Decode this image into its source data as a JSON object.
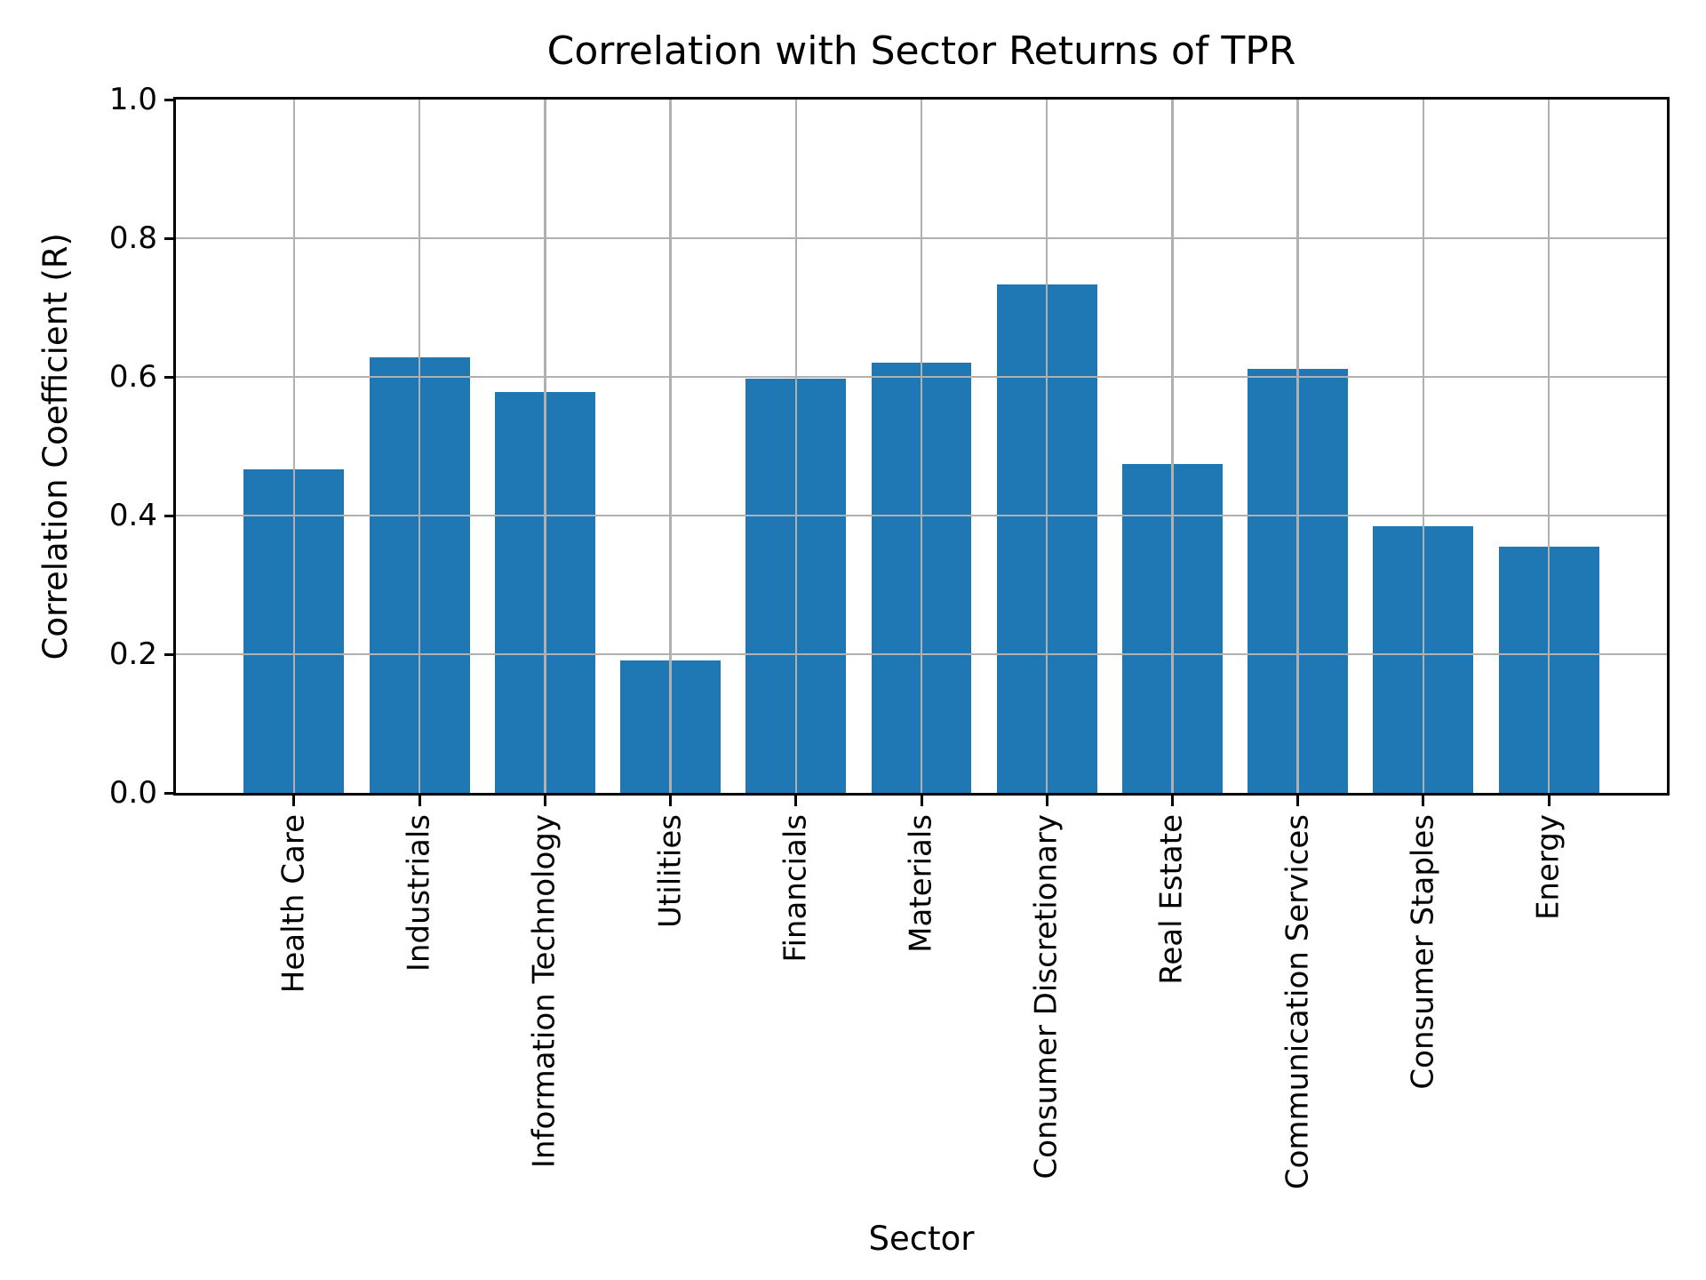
{
  "chart_data": {
    "type": "bar",
    "title": "Correlation with Sector Returns of TPR",
    "xlabel": "Sector",
    "ylabel": "Correlation Coefficient (R)",
    "categories": [
      "Health Care",
      "Industrials",
      "Information Technology",
      "Utilities",
      "Financials",
      "Materials",
      "Consumer Discretionary",
      "Real Estate",
      "Communication Services",
      "Consumer Staples",
      "Energy"
    ],
    "values": [
      0.467,
      0.628,
      0.578,
      0.191,
      0.598,
      0.62,
      0.733,
      0.475,
      0.612,
      0.385,
      0.355
    ],
    "ylim": [
      0.0,
      1.0
    ],
    "ytick_labels": [
      "0.0",
      "0.2",
      "0.4",
      "0.6",
      "0.8",
      "1.0"
    ],
    "ytick_values": [
      0.0,
      0.2,
      0.4,
      0.6,
      0.8,
      1.0
    ],
    "grid": "on",
    "grid_over_bars": true,
    "legend_position": "none",
    "bar_color": "#1f77b4",
    "grid_color": "#b0b0b0",
    "axis_color": "#000000",
    "background_color": "#ffffff",
    "x_tick_label_rotation_deg": 90
  }
}
